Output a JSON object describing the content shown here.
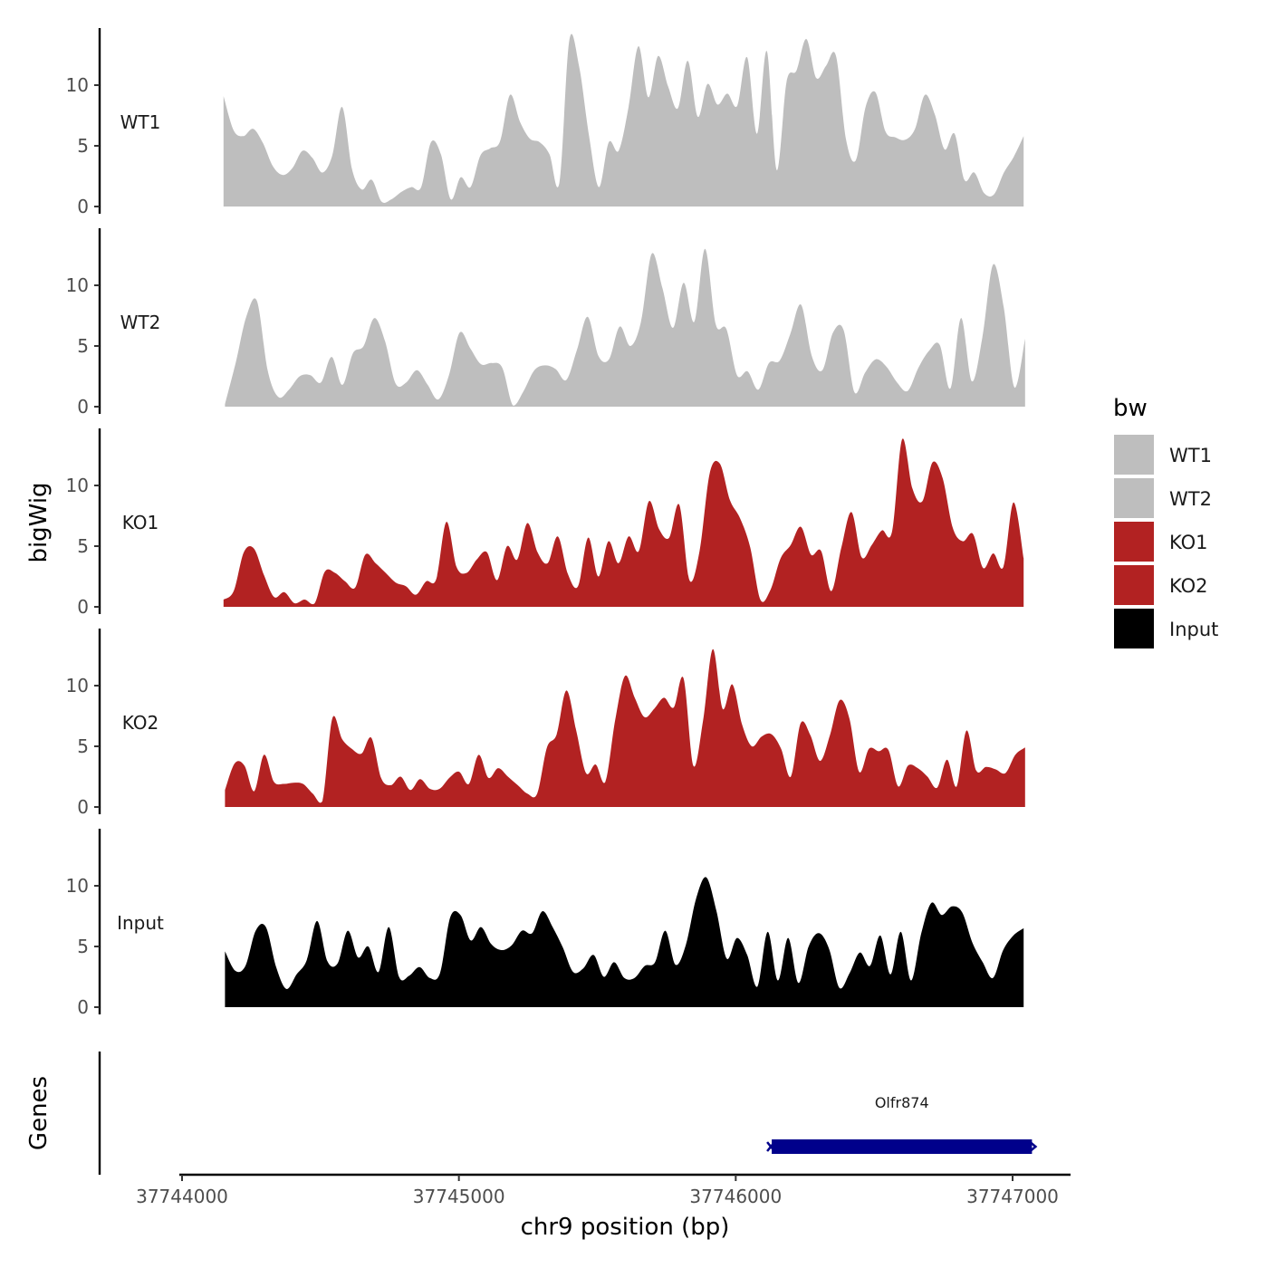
{
  "chart_data": {
    "type": "area",
    "xlabel": "chr9 position (bp)",
    "ylabel": "bigWig",
    "xlim": [
      37743990,
      37747210
    ],
    "ylim": [
      0,
      14.5
    ],
    "x_ticks": [
      37744000,
      37745000,
      37746000,
      37747000
    ],
    "x_tick_labels": [
      "37744000",
      "37745000",
      "37746000",
      "37747000"
    ],
    "y_ticks": [
      0,
      5,
      10
    ],
    "y_tick_labels": [
      "0",
      "5",
      "10"
    ],
    "legend": {
      "title": "bw",
      "position": "right",
      "entries": [
        {
          "name": "WT1",
          "color": "#bebebe"
        },
        {
          "name": "WT2",
          "color": "#bebebe"
        },
        {
          "name": "KO1",
          "color": "#b22222"
        },
        {
          "name": "KO2",
          "color": "#b22222"
        },
        {
          "name": "Input",
          "color": "#000000"
        }
      ]
    },
    "series": [
      {
        "name": "WT1",
        "color": "#bebebe",
        "x_start": 37744150,
        "x_end": 37747040,
        "values": [
          9.1,
          6.3,
          5.8,
          6.4,
          5.2,
          3.3,
          2.6,
          3.2,
          4.6,
          4.0,
          2.8,
          4.2,
          8.2,
          3.1,
          1.4,
          2.2,
          0.4,
          0.6,
          1.2,
          1.6,
          1.6,
          5.3,
          4.3,
          0.6,
          2.4,
          1.6,
          4.2,
          4.8,
          5.4,
          9.2,
          7.0,
          5.6,
          5.3,
          4.3,
          2.0,
          13.7,
          11.5,
          5.8,
          1.6,
          5.3,
          4.6,
          8.2,
          13.2,
          9.0,
          12.4,
          9.9,
          8.1,
          12.0,
          7.4,
          10.1,
          8.4,
          9.3,
          8.3,
          12.3,
          6.0,
          12.8,
          3.0,
          10.3,
          11.2,
          13.8,
          10.6,
          11.6,
          12.4,
          5.6,
          3.8,
          8.2,
          9.4,
          6.2,
          5.7,
          5.5,
          6.4,
          9.2,
          7.6,
          4.7,
          6.0,
          2.2,
          2.8,
          1.1,
          1.0,
          2.8,
          4.1,
          5.8
        ]
      },
      {
        "name": "WT2",
        "color": "#bebebe",
        "x_start": 37744155,
        "x_end": 37747045,
        "values": [
          0.2,
          3.6,
          7.4,
          8.7,
          3.0,
          0.8,
          1.4,
          2.5,
          2.6,
          2.0,
          4.1,
          1.8,
          4.4,
          5.0,
          7.3,
          5.4,
          1.9,
          2.0,
          3.0,
          1.8,
          0.6,
          2.6,
          6.1,
          4.8,
          3.5,
          3.6,
          3.2,
          0.1,
          1.3,
          3.0,
          3.4,
          3.1,
          2.2,
          4.7,
          7.4,
          4.2,
          3.9,
          6.6,
          5.0,
          7.0,
          12.6,
          9.8,
          6.5,
          10.2,
          7.0,
          13.0,
          6.8,
          6.4,
          2.6,
          2.9,
          1.4,
          3.6,
          3.8,
          6.0,
          8.4,
          4.2,
          3.0,
          6.1,
          6.3,
          1.2,
          2.8,
          3.9,
          3.3,
          2.0,
          1.3,
          3.2,
          4.6,
          5.1,
          1.5,
          7.3,
          2.1,
          5.7,
          11.7,
          8.2,
          1.6,
          5.6
        ]
      },
      {
        "name": "KO1",
        "color": "#b22222",
        "x_start": 37744150,
        "x_end": 37747040,
        "values": [
          0.6,
          1.3,
          4.5,
          4.8,
          2.6,
          0.8,
          1.2,
          0.3,
          0.6,
          0.3,
          2.9,
          2.8,
          2.1,
          1.6,
          4.3,
          3.6,
          2.8,
          2.0,
          1.7,
          1.0,
          2.1,
          2.3,
          7.0,
          3.3,
          2.8,
          3.9,
          4.5,
          2.2,
          5.0,
          3.9,
          6.9,
          4.5,
          3.6,
          5.8,
          2.7,
          1.7,
          5.7,
          2.5,
          5.4,
          3.6,
          5.8,
          4.6,
          8.7,
          6.4,
          5.7,
          8.4,
          2.2,
          4.6,
          11.0,
          11.8,
          8.8,
          7.3,
          4.9,
          0.6,
          1.4,
          4.0,
          5.1,
          6.6,
          4.3,
          4.6,
          1.3,
          4.9,
          7.8,
          4.1,
          5.1,
          6.3,
          6.2,
          13.8,
          9.8,
          8.7,
          11.9,
          10.6,
          6.5,
          5.4,
          6.0,
          3.2,
          4.4,
          3.3,
          8.6,
          4.0
        ]
      },
      {
        "name": "KO2",
        "color": "#b22222",
        "x_start": 37744155,
        "x_end": 37747045,
        "values": [
          1.4,
          3.6,
          3.4,
          1.3,
          4.3,
          2.1,
          1.9,
          2.0,
          1.9,
          1.1,
          0.5,
          7.3,
          5.6,
          4.8,
          4.4,
          5.7,
          2.4,
          1.8,
          2.5,
          1.4,
          2.3,
          1.5,
          1.5,
          2.4,
          2.9,
          1.9,
          4.3,
          2.4,
          3.2,
          2.5,
          1.8,
          1.1,
          1.1,
          4.9,
          6.0,
          9.6,
          6.3,
          2.8,
          3.5,
          2.1,
          7.2,
          10.8,
          9.0,
          7.4,
          8.1,
          9.0,
          8.2,
          10.6,
          3.4,
          7.1,
          13.0,
          8.1,
          10.1,
          6.8,
          5.0,
          5.8,
          6.0,
          4.8,
          2.5,
          6.9,
          5.9,
          3.8,
          5.9,
          8.8,
          7.3,
          2.9,
          4.8,
          4.6,
          4.7,
          1.7,
          3.4,
          3.2,
          2.5,
          1.6,
          3.9,
          1.7,
          6.3,
          3.0,
          3.3,
          3.1,
          2.8,
          4.3,
          4.9
        ]
      },
      {
        "name": "Input",
        "color": "#000000",
        "x_start": 37744155,
        "x_end": 37747040,
        "values": [
          4.6,
          3.0,
          3.4,
          6.3,
          6.6,
          3.3,
          1.5,
          2.7,
          3.9,
          7.1,
          3.8,
          3.6,
          6.3,
          4.1,
          5.0,
          2.9,
          6.6,
          2.5,
          2.6,
          3.3,
          2.4,
          2.8,
          7.4,
          7.6,
          5.5,
          6.6,
          5.2,
          4.7,
          5.1,
          6.3,
          6.1,
          7.9,
          6.6,
          4.9,
          2.9,
          3.2,
          4.3,
          2.5,
          3.7,
          2.4,
          2.4,
          3.4,
          3.7,
          6.3,
          3.5,
          5.1,
          8.9,
          10.7,
          7.9,
          4.0,
          5.7,
          4.3,
          1.7,
          6.2,
          2.2,
          5.7,
          2.0,
          5.0,
          6.1,
          4.8,
          1.6,
          2.8,
          4.5,
          3.4,
          5.9,
          2.7,
          6.2,
          2.2,
          6.1,
          8.6,
          7.6,
          8.3,
          7.8,
          5.3,
          3.7,
          2.4,
          4.7,
          5.9,
          6.5
        ]
      }
    ],
    "genes_track": {
      "label": "Genes",
      "genes": [
        {
          "name": "Olfr874",
          "start": 37746130,
          "end": 37747070,
          "strand": "-",
          "color": "#00008b"
        }
      ]
    }
  }
}
